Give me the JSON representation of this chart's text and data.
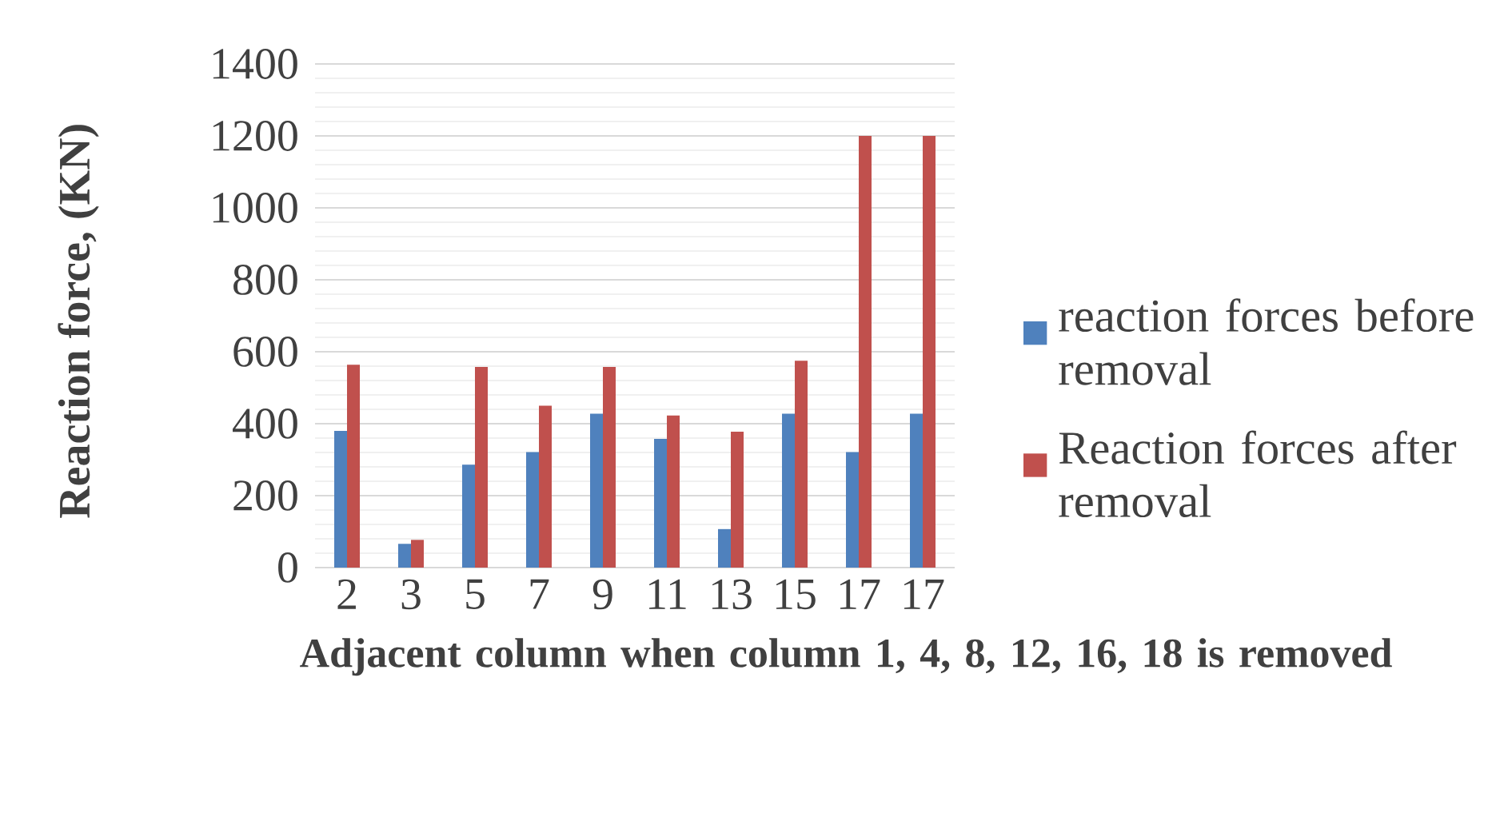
{
  "chart_data": {
    "type": "bar",
    "xlabel": "Adjacent column when column 1, 4, 8, 12, 16, 18 is removed",
    "ylabel": "Reaction force, (KN)",
    "categories": [
      "2",
      "3",
      "5",
      "7",
      "9",
      "11",
      "13",
      "15",
      "17",
      "17"
    ],
    "series": [
      {
        "name": "reaction forces before removal",
        "color": "#4f81bd",
        "values": [
          380,
          66,
          286,
          321,
          428,
          358,
          107,
          428,
          321,
          428
        ]
      },
      {
        "name": "Reaction forces after removal",
        "color": "#c0504d",
        "values": [
          564,
          77,
          558,
          450,
          558,
          423,
          378,
          575,
          1200,
          1200
        ]
      }
    ],
    "ylim": [
      0,
      1400
    ],
    "yticks": [
      0,
      200,
      400,
      600,
      800,
      1000,
      1200,
      1400
    ],
    "grid": "y",
    "legend": "right"
  }
}
